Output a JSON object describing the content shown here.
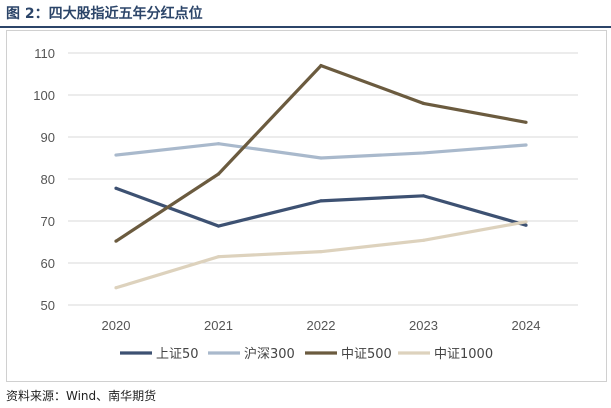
{
  "figure": {
    "title": "图 2：四大股指近五年分红点位",
    "source": "资料来源：Wind、南华期货"
  },
  "chart_data": {
    "type": "line",
    "title": "",
    "xlabel": "",
    "ylabel": "",
    "categories": [
      "2020",
      "2021",
      "2022",
      "2023",
      "2024"
    ],
    "ylim": [
      50,
      110
    ],
    "yticks": [
      "50",
      "60",
      "70",
      "80",
      "90",
      "100",
      "110"
    ],
    "grid": true,
    "legend_position": "bottom",
    "series": [
      {
        "name": "上证50",
        "color": "#3d5172",
        "values": [
          77.8,
          68.8,
          74.8,
          76.0,
          69.0
        ]
      },
      {
        "name": "沪深300",
        "color": "#a9b9cc",
        "values": [
          85.7,
          88.4,
          85.0,
          86.2,
          88.1
        ]
      },
      {
        "name": "中证500",
        "color": "#6b5b3f",
        "values": [
          65.2,
          81.2,
          107.0,
          98.0,
          93.5
        ]
      },
      {
        "name": "中证1000",
        "color": "#ddd2bd",
        "values": [
          54.1,
          61.5,
          62.7,
          65.4,
          69.8
        ]
      }
    ]
  }
}
